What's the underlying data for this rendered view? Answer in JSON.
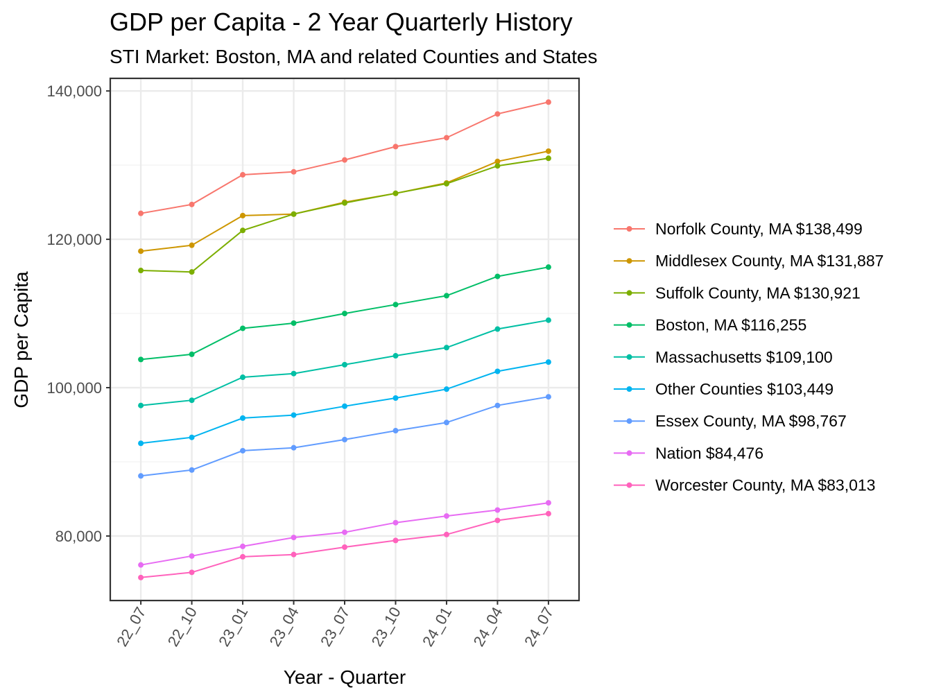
{
  "chart_data": {
    "type": "line",
    "title": "GDP per Capita - 2 Year Quarterly History",
    "subtitle": "STI Market: Boston, MA and related Counties and States",
    "xlabel": "Year - Quarter",
    "ylabel": "GDP per Capita",
    "categories": [
      "22_07",
      "22_10",
      "23_01",
      "23_04",
      "23_07",
      "23_10",
      "24_01",
      "24_04",
      "24_07"
    ],
    "ylim": [
      71300,
      141700
    ],
    "yticks": [
      80000,
      100000,
      120000,
      140000
    ],
    "ytick_labels": [
      "80,000",
      "100,000",
      "120,000",
      "140,000"
    ],
    "grid": true,
    "legend_position": "right",
    "series": [
      {
        "name": "Norfolk County, MA $138,499",
        "color": "#F8766D",
        "values": [
          123500,
          124700,
          128700,
          129100,
          130700,
          132500,
          133700,
          136900,
          138499
        ]
      },
      {
        "name": "Middlesex County, MA $131,887",
        "color": "#CD9600",
        "values": [
          118400,
          119200,
          123200,
          123400,
          125000,
          126200,
          127600,
          130500,
          131887
        ]
      },
      {
        "name": "Suffolk County, MA $130,921",
        "color": "#7CAE00",
        "values": [
          115800,
          115600,
          121200,
          123400,
          124900,
          126200,
          127500,
          129900,
          130921
        ]
      },
      {
        "name": "Boston, MA $116,255",
        "color": "#00BE67",
        "values": [
          103800,
          104500,
          108000,
          108700,
          110000,
          111200,
          112400,
          115000,
          116255
        ]
      },
      {
        "name": "Massachusetts $109,100",
        "color": "#00BFA4",
        "values": [
          97600,
          98300,
          101400,
          101900,
          103100,
          104300,
          105400,
          107900,
          109100
        ]
      },
      {
        "name": "Other Counties $103,449",
        "color": "#00B4F0",
        "values": [
          92500,
          93300,
          95900,
          96300,
          97500,
          98600,
          99800,
          102200,
          103449
        ]
      },
      {
        "name": "Essex County, MA $98,767",
        "color": "#619CFF",
        "values": [
          88100,
          88900,
          91500,
          91900,
          93000,
          94200,
          95300,
          97600,
          98767
        ]
      },
      {
        "name": "Nation $84,476",
        "color": "#E76BF3",
        "values": [
          76100,
          77300,
          78600,
          79800,
          80500,
          81800,
          82700,
          83500,
          84476
        ]
      },
      {
        "name": "Worcester County, MA $83,013",
        "color": "#FF62BC",
        "values": [
          74400,
          75100,
          77200,
          77500,
          78500,
          79400,
          80200,
          82100,
          83013
        ]
      }
    ]
  }
}
